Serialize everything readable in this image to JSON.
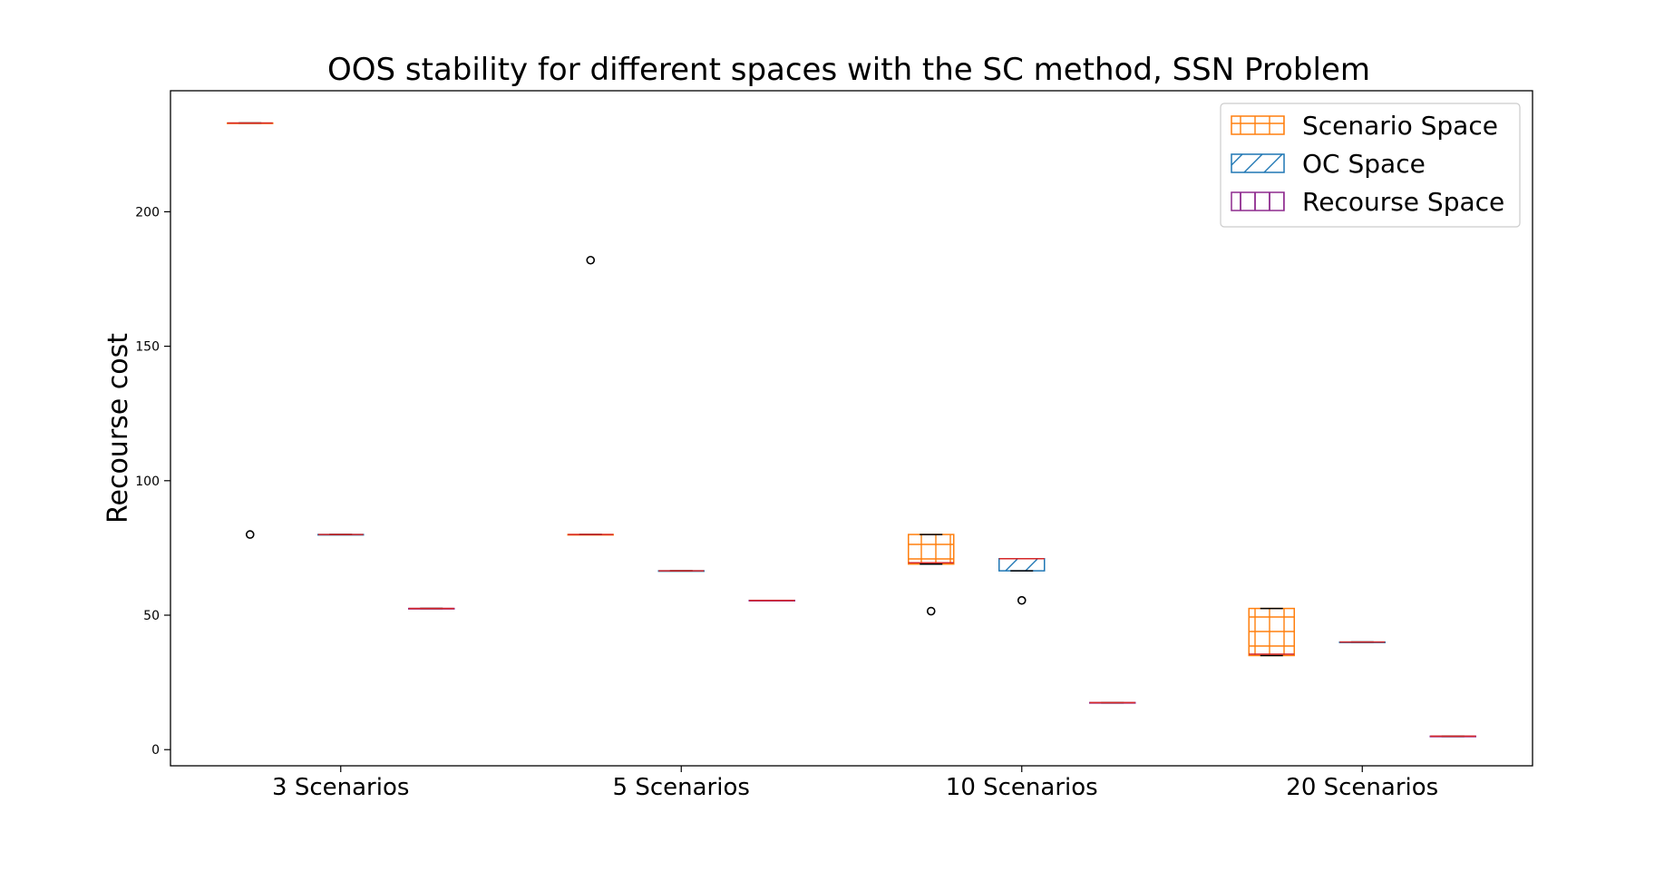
{
  "chart_data": {
    "type": "box",
    "title": "OOS stability for different spaces with the SC method, SSN Problem",
    "xlabel": "",
    "ylabel": "Recourse cost",
    "ylim": [
      -6,
      245
    ],
    "yticks": [
      0,
      50,
      100,
      150,
      200
    ],
    "categories": [
      "3 Scenarios",
      "5 Scenarios",
      "10 Scenarios",
      "20 Scenarios"
    ],
    "legend": {
      "location": "top-right"
    },
    "series": [
      {
        "name": "Scenario Space",
        "color": "#ff7f0e",
        "hatch": "grid",
        "boxes": [
          {
            "min": 233,
            "q1": 233,
            "median": 233,
            "q3": 233,
            "max": 233,
            "outliers": [
              80
            ]
          },
          {
            "min": 80,
            "q1": 80,
            "median": 80,
            "q3": 80,
            "max": 80,
            "outliers": [
              182
            ]
          },
          {
            "min": 69,
            "q1": 69,
            "median": 69.5,
            "q3": 80,
            "max": 80,
            "outliers": [
              51.5
            ]
          },
          {
            "min": 35,
            "q1": 35,
            "median": 35.5,
            "q3": 52.5,
            "max": 52.5,
            "outliers": []
          }
        ]
      },
      {
        "name": "OC Space",
        "color": "#1f77b4",
        "hatch": "diagonal",
        "boxes": [
          {
            "min": 80,
            "q1": 80,
            "median": 80,
            "q3": 80,
            "max": 80,
            "outliers": []
          },
          {
            "min": 66.5,
            "q1": 66.5,
            "median": 66.5,
            "q3": 66.5,
            "max": 66.5,
            "outliers": []
          },
          {
            "min": 66.5,
            "q1": 66.5,
            "median": 71,
            "q3": 71,
            "max": 71,
            "outliers": [
              55.5
            ]
          },
          {
            "min": 40,
            "q1": 40,
            "median": 40,
            "q3": 40,
            "max": 40,
            "outliers": []
          }
        ]
      },
      {
        "name": "Recourse Space",
        "color": "#8e2a8e",
        "hatch": "vertical",
        "boxes": [
          {
            "min": 52.5,
            "q1": 52.5,
            "median": 52.5,
            "q3": 52.5,
            "max": 52.5,
            "outliers": []
          },
          {
            "min": 55.5,
            "q1": 55.5,
            "median": 55.5,
            "q3": 55.5,
            "max": 55.5,
            "outliers": []
          },
          {
            "min": 17.5,
            "q1": 17.5,
            "median": 17.5,
            "q3": 17.5,
            "max": 17.5,
            "outliers": []
          },
          {
            "min": 5,
            "q1": 5,
            "median": 5,
            "q3": 5,
            "max": 5,
            "outliers": []
          }
        ]
      }
    ],
    "median_color": "#d62728"
  }
}
